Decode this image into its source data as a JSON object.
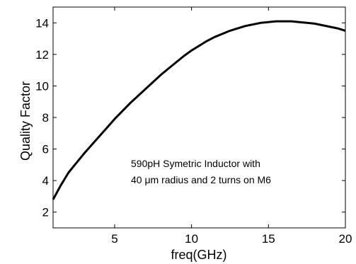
{
  "chart_data": {
    "type": "line",
    "title": "",
    "xlabel": "freq(GHz)",
    "ylabel": "Quality Factor",
    "xlim": [
      1,
      20
    ],
    "ylim": [
      1,
      15
    ],
    "xticks": [
      5,
      10,
      15,
      20
    ],
    "yticks": [
      2,
      4,
      6,
      8,
      10,
      12,
      14
    ],
    "xtick_labels": [
      "5",
      "10",
      "15",
      "20"
    ],
    "ytick_labels": [
      "2",
      "4",
      "6",
      "8",
      "10",
      "12",
      "14"
    ],
    "grid": false,
    "annotation": [
      "590pH Symetric Inductor with",
      "40 μm radius and 2 turns on M6"
    ],
    "colors": {
      "line": "#000000",
      "axes": "#000000",
      "background": "#ffffff"
    },
    "series": [
      {
        "x": [
          1,
          1.5,
          2,
          2.5,
          3,
          3.5,
          4,
          4.5,
          5,
          5.5,
          6,
          6.5,
          7,
          7.5,
          8,
          8.5,
          9,
          9.5,
          10,
          10.5,
          11,
          11.5,
          12,
          12.5,
          13,
          13.5,
          14,
          14.5,
          15,
          15.5,
          16,
          16.5,
          17,
          17.5,
          18,
          18.5,
          19,
          19.5,
          20
        ],
        "y": [
          2.8,
          3.7,
          4.5,
          5.1,
          5.7,
          6.25,
          6.8,
          7.35,
          7.9,
          8.4,
          8.9,
          9.35,
          9.8,
          10.25,
          10.7,
          11.1,
          11.5,
          11.9,
          12.25,
          12.55,
          12.85,
          13.1,
          13.3,
          13.5,
          13.65,
          13.8,
          13.9,
          14.0,
          14.05,
          14.1,
          14.1,
          14.1,
          14.05,
          14.0,
          13.95,
          13.85,
          13.75,
          13.65,
          13.5
        ]
      }
    ]
  }
}
